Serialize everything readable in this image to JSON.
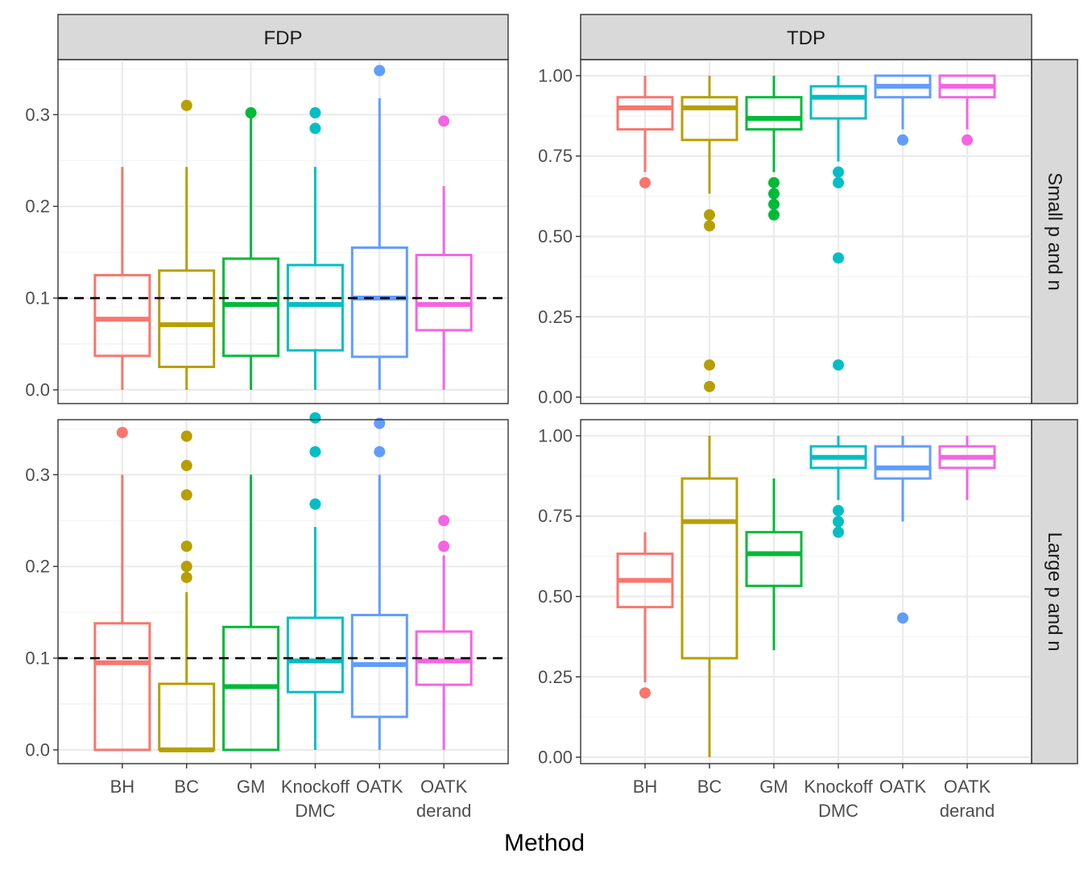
{
  "chart_data": {
    "type": "boxplot",
    "xlabel": "Method",
    "categories": [
      {
        "label1": "BH",
        "label2": ""
      },
      {
        "label1": "BC",
        "label2": ""
      },
      {
        "label1": "GM",
        "label2": ""
      },
      {
        "label1": "Knockoff",
        "label2": "DMC"
      },
      {
        "label1": "OATK",
        "label2": ""
      },
      {
        "label1": "OATK",
        "label2": "derand"
      }
    ],
    "colors": [
      "#f8766d",
      "#b79f00",
      "#00ba38",
      "#00bfc4",
      "#619cff",
      "#f564e3"
    ],
    "column_labels": [
      "FDP",
      "TDP"
    ],
    "row_labels": [
      "Small p and n",
      "Large p and n"
    ],
    "columns": [
      {
        "ylim": [
          -0.015,
          0.36
        ],
        "ticks": [
          0.0,
          0.1,
          0.2,
          0.3
        ],
        "tick_labels": [
          "0.0",
          "0.1",
          "0.2",
          "0.3"
        ],
        "minor_ticks": [
          0.05,
          0.15,
          0.25,
          0.35
        ],
        "ref_line": 0.1
      },
      {
        "ylim": [
          -0.02,
          1.05
        ],
        "ticks": [
          0.0,
          0.25,
          0.5,
          0.75,
          1.0
        ],
        "tick_labels": [
          "0.00",
          "0.25",
          "0.50",
          "0.75",
          "1.00"
        ],
        "minor_ticks": [
          0.125,
          0.375,
          0.625,
          0.875
        ],
        "ref_line": null
      }
    ],
    "panels": [
      {
        "column": 0,
        "row": 0,
        "boxes": [
          {
            "lower": 0.0,
            "q1": 0.037,
            "median": 0.077,
            "q3": 0.125,
            "upper": 0.243,
            "outliers": []
          },
          {
            "lower": 0.0,
            "q1": 0.025,
            "median": 0.071,
            "q3": 0.13,
            "upper": 0.243,
            "outliers": [
              0.31
            ]
          },
          {
            "lower": 0.0,
            "q1": 0.037,
            "median": 0.093,
            "q3": 0.143,
            "upper": 0.302,
            "outliers": [
              0.302
            ]
          },
          {
            "lower": 0.0,
            "q1": 0.043,
            "median": 0.093,
            "q3": 0.136,
            "upper": 0.243,
            "outliers": [
              0.285,
              0.302
            ]
          },
          {
            "lower": 0.0,
            "q1": 0.036,
            "median": 0.1,
            "q3": 0.155,
            "upper": 0.318,
            "outliers": [
              0.348
            ]
          },
          {
            "lower": 0.0,
            "q1": 0.065,
            "median": 0.093,
            "q3": 0.147,
            "upper": 0.222,
            "outliers": [
              0.293
            ]
          }
        ]
      },
      {
        "column": 0,
        "row": 1,
        "boxes": [
          {
            "lower": 0.0,
            "q1": 0.0,
            "median": 0.095,
            "q3": 0.138,
            "upper": 0.3,
            "outliers": [
              0.346
            ]
          },
          {
            "lower": 0.0,
            "q1": 0.0,
            "median": 0.0,
            "q3": 0.072,
            "upper": 0.172,
            "outliers": [
              0.188,
              0.2,
              0.222,
              0.278,
              0.31,
              0.342
            ]
          },
          {
            "lower": 0.0,
            "q1": 0.0,
            "median": 0.069,
            "q3": 0.134,
            "upper": 0.3,
            "outliers": []
          },
          {
            "lower": 0.0,
            "q1": 0.063,
            "median": 0.097,
            "q3": 0.144,
            "upper": 0.243,
            "outliers": [
              0.268,
              0.325,
              0.362
            ]
          },
          {
            "lower": 0.0,
            "q1": 0.036,
            "median": 0.093,
            "q3": 0.147,
            "upper": 0.3,
            "outliers": [
              0.325,
              0.356
            ]
          },
          {
            "lower": 0.0,
            "q1": 0.071,
            "median": 0.097,
            "q3": 0.129,
            "upper": 0.212,
            "outliers": [
              0.222,
              0.25
            ]
          }
        ]
      },
      {
        "column": 1,
        "row": 0,
        "boxes": [
          {
            "lower": 0.7,
            "q1": 0.833,
            "median": 0.9,
            "q3": 0.933,
            "upper": 1.0,
            "outliers": [
              0.667
            ]
          },
          {
            "lower": 0.633,
            "q1": 0.8,
            "median": 0.9,
            "q3": 0.933,
            "upper": 1.0,
            "outliers": [
              0.033,
              0.1,
              0.533,
              0.567
            ]
          },
          {
            "lower": 0.7,
            "q1": 0.833,
            "median": 0.867,
            "q3": 0.933,
            "upper": 1.0,
            "outliers": [
              0.567,
              0.6,
              0.633,
              0.667
            ]
          },
          {
            "lower": 0.733,
            "q1": 0.867,
            "median": 0.933,
            "q3": 0.967,
            "upper": 1.0,
            "outliers": [
              0.1,
              0.433,
              0.667,
              0.7
            ]
          },
          {
            "lower": 0.833,
            "q1": 0.933,
            "median": 0.967,
            "q3": 1.0,
            "upper": 1.0,
            "outliers": [
              0.8
            ]
          },
          {
            "lower": 0.833,
            "q1": 0.933,
            "median": 0.967,
            "q3": 1.0,
            "upper": 1.0,
            "outliers": [
              0.8
            ]
          }
        ]
      },
      {
        "column": 1,
        "row": 1,
        "boxes": [
          {
            "lower": 0.233,
            "q1": 0.467,
            "median": 0.55,
            "q3": 0.633,
            "upper": 0.7,
            "outliers": [
              0.2
            ]
          },
          {
            "lower": 0.0,
            "q1": 0.308,
            "median": 0.733,
            "q3": 0.867,
            "upper": 1.0,
            "outliers": []
          },
          {
            "lower": 0.333,
            "q1": 0.533,
            "median": 0.633,
            "q3": 0.7,
            "upper": 0.867,
            "outliers": []
          },
          {
            "lower": 0.8,
            "q1": 0.9,
            "median": 0.933,
            "q3": 0.967,
            "upper": 1.0,
            "outliers": [
              0.7,
              0.733,
              0.767
            ]
          },
          {
            "lower": 0.733,
            "q1": 0.867,
            "median": 0.9,
            "q3": 0.967,
            "upper": 1.0,
            "outliers": [
              0.433
            ]
          },
          {
            "lower": 0.8,
            "q1": 0.9,
            "median": 0.933,
            "q3": 0.967,
            "upper": 1.0,
            "outliers": []
          }
        ]
      }
    ]
  }
}
